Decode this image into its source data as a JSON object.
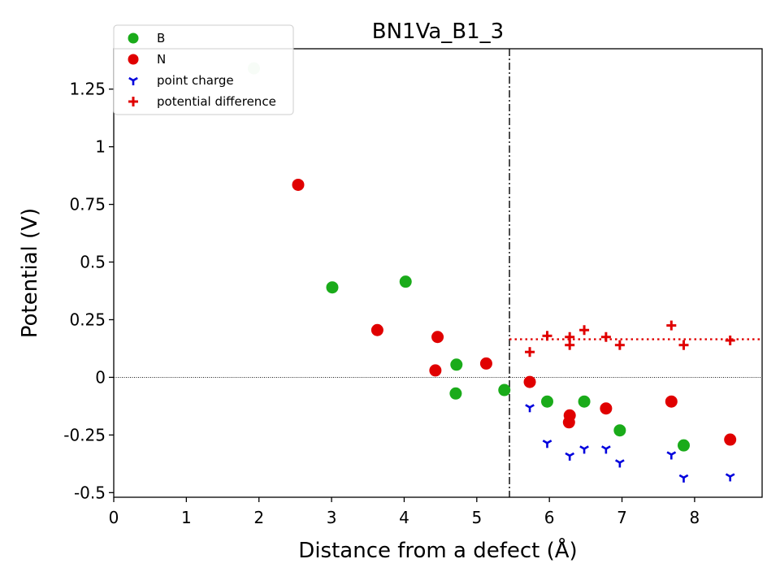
{
  "chart_data": {
    "type": "scatter",
    "title": "BN1Va_B1_3",
    "xlabel": "Distance from a defect (Å)",
    "ylabel": "Potential (V)",
    "xlim": [
      0,
      8.93
    ],
    "ylim": [
      -0.52,
      1.425
    ],
    "xticks": [
      0,
      1,
      2,
      3,
      4,
      5,
      6,
      7,
      8
    ],
    "yticks": [
      -0.5,
      -0.25,
      0,
      0.25,
      0.5,
      0.75,
      1,
      1.25
    ],
    "xtick_labels": [
      "0",
      "1",
      "2",
      "3",
      "4",
      "5",
      "6",
      "7",
      "8"
    ],
    "ytick_labels": [
      "-0.5",
      "-0.25",
      "0",
      "0.25",
      "0.5",
      "0.75",
      "1",
      "1.25"
    ],
    "grid": false,
    "legend_position": "top-left",
    "reference_lines": {
      "zero_line_y": 0,
      "defect_region_x": 5.45,
      "average_potential_difference": {
        "x_from": 5.45,
        "y": 0.165
      }
    },
    "series": [
      {
        "name": "B",
        "marker": "circle",
        "color": "#1aab1a",
        "points": [
          {
            "x": 1.93,
            "y": 1.34,
            "faded": true
          },
          {
            "x": 3.01,
            "y": 0.39
          },
          {
            "x": 4.02,
            "y": 0.415
          },
          {
            "x": 4.72,
            "y": 0.055
          },
          {
            "x": 4.71,
            "y": -0.07
          },
          {
            "x": 5.38,
            "y": -0.055
          },
          {
            "x": 5.97,
            "y": -0.105
          },
          {
            "x": 6.48,
            "y": -0.105
          },
          {
            "x": 6.97,
            "y": -0.23
          },
          {
            "x": 7.85,
            "y": -0.295
          }
        ]
      },
      {
        "name": "N",
        "marker": "circle",
        "color": "#e00000",
        "points": [
          {
            "x": 2.54,
            "y": 0.835
          },
          {
            "x": 3.63,
            "y": 0.205
          },
          {
            "x": 4.46,
            "y": 0.175
          },
          {
            "x": 4.43,
            "y": 0.03
          },
          {
            "x": 5.13,
            "y": 0.06
          },
          {
            "x": 5.73,
            "y": -0.02
          },
          {
            "x": 6.28,
            "y": -0.165
          },
          {
            "x": 6.27,
            "y": -0.195
          },
          {
            "x": 6.78,
            "y": -0.135
          },
          {
            "x": 7.68,
            "y": -0.105
          },
          {
            "x": 8.49,
            "y": -0.27
          }
        ]
      },
      {
        "name": "point charge",
        "marker": "tri_down",
        "color": "#0000dd",
        "points": [
          {
            "x": 5.73,
            "y": -0.13
          },
          {
            "x": 5.97,
            "y": -0.285
          },
          {
            "x": 6.28,
            "y": -0.34
          },
          {
            "x": 6.48,
            "y": -0.31
          },
          {
            "x": 6.78,
            "y": -0.31
          },
          {
            "x": 6.97,
            "y": -0.37
          },
          {
            "x": 7.68,
            "y": -0.335
          },
          {
            "x": 7.85,
            "y": -0.435
          },
          {
            "x": 8.49,
            "y": -0.43
          }
        ]
      },
      {
        "name": "potential difference",
        "marker": "plus",
        "color": "#e00000",
        "points": [
          {
            "x": 5.73,
            "y": 0.11
          },
          {
            "x": 5.97,
            "y": 0.18
          },
          {
            "x": 6.28,
            "y": 0.14
          },
          {
            "x": 6.28,
            "y": 0.175
          },
          {
            "x": 6.48,
            "y": 0.205
          },
          {
            "x": 6.78,
            "y": 0.175
          },
          {
            "x": 6.97,
            "y": 0.14
          },
          {
            "x": 7.68,
            "y": 0.225
          },
          {
            "x": 7.85,
            "y": 0.14
          },
          {
            "x": 8.49,
            "y": 0.16
          }
        ]
      }
    ]
  }
}
